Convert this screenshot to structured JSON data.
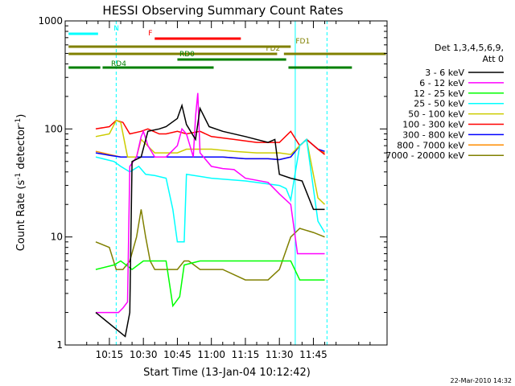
{
  "chart_data": {
    "type": "line",
    "title": "HESSI Observing Summary Count Rates",
    "xlabel": "Start Time (13-Jan-04 10:12:42)",
    "ylabel": "Count Rate (s⁻¹ detector⁻¹)",
    "ylabel_main": "Count Rate (s",
    "ylabel_sup1": "-1",
    "ylabel_mid": " detector",
    "ylabel_sup2": "-1",
    "ylabel_end": ")",
    "yscale": "log",
    "ylim": [
      1,
      1000
    ],
    "xlim_minutes": [
      -19.5,
      122.5
    ],
    "x_ticks": [
      {
        "label": "10:15",
        "min": 0
      },
      {
        "label": "10:30",
        "min": 15
      },
      {
        "label": "10:45",
        "min": 30
      },
      {
        "label": "11:00",
        "min": 45
      },
      {
        "label": "11:15",
        "min": 60
      },
      {
        "label": "11:30",
        "min": 75
      },
      {
        "label": "11:45",
        "min": 90
      }
    ],
    "y_ticks": [
      {
        "label": "1",
        "value": 1
      },
      {
        "label": "10",
        "value": 10
      },
      {
        "label": "100",
        "value": 100
      },
      {
        "label": "1000",
        "value": 1000
      }
    ],
    "legend_header": [
      "Det 1,3,4,5,6,9,",
      "Att 0"
    ],
    "legend_position": "right",
    "date_stamp": "22-Mar-2010 14:32",
    "series": [
      {
        "name": "3 - 6 keV",
        "color": "#000000",
        "points": [
          [
            -6,
            2
          ],
          [
            7,
            1.2
          ],
          [
            9,
            2
          ],
          [
            10,
            50
          ],
          [
            14,
            55
          ],
          [
            17,
            95
          ],
          [
            22,
            100
          ],
          [
            25,
            105
          ],
          [
            30,
            125
          ],
          [
            32,
            165
          ],
          [
            34,
            110
          ],
          [
            38,
            80
          ],
          [
            40,
            155
          ],
          [
            44,
            105
          ],
          [
            50,
            95
          ],
          [
            60,
            85
          ],
          [
            70,
            75
          ],
          [
            73,
            80
          ],
          [
            75,
            38
          ],
          [
            80,
            35
          ],
          [
            85,
            33
          ],
          [
            90,
            18
          ],
          [
            95,
            18
          ]
        ]
      },
      {
        "name": "6 - 12 keV",
        "color": "#ff00ff",
        "points": [
          [
            -6,
            2
          ],
          [
            2,
            2
          ],
          [
            4,
            2
          ],
          [
            6,
            2.2
          ],
          [
            8,
            2.5
          ],
          [
            9,
            45
          ],
          [
            12,
            55
          ],
          [
            14,
            85
          ],
          [
            15,
            95
          ],
          [
            17,
            70
          ],
          [
            20,
            55
          ],
          [
            25,
            55
          ],
          [
            30,
            70
          ],
          [
            32,
            100
          ],
          [
            34,
            90
          ],
          [
            37,
            55
          ],
          [
            38,
            130
          ],
          [
            39,
            215
          ],
          [
            40,
            60
          ],
          [
            45,
            45
          ],
          [
            50,
            43
          ],
          [
            55,
            42
          ],
          [
            60,
            35
          ],
          [
            70,
            32
          ],
          [
            75,
            25
          ],
          [
            80,
            20
          ],
          [
            83,
            7
          ],
          [
            90,
            7
          ],
          [
            95,
            7
          ]
        ]
      },
      {
        "name": "12 - 25 keV",
        "color": "#00ff00",
        "points": [
          [
            -6,
            5
          ],
          [
            2,
            5.5
          ],
          [
            5,
            6
          ],
          [
            10,
            5
          ],
          [
            15,
            6
          ],
          [
            20,
            6
          ],
          [
            25,
            6
          ],
          [
            28,
            2.3
          ],
          [
            31,
            2.8
          ],
          [
            33,
            5.5
          ],
          [
            40,
            6
          ],
          [
            50,
            6
          ],
          [
            60,
            6
          ],
          [
            70,
            6
          ],
          [
            75,
            6
          ],
          [
            80,
            6
          ],
          [
            84,
            4
          ],
          [
            90,
            4
          ],
          [
            95,
            4
          ]
        ]
      },
      {
        "name": "25 - 50 keV",
        "color": "#00ffff",
        "points": [
          [
            -6,
            55
          ],
          [
            2,
            50
          ],
          [
            5,
            45
          ],
          [
            9,
            40
          ],
          [
            13,
            45
          ],
          [
            16,
            38
          ],
          [
            20,
            37
          ],
          [
            25,
            35
          ],
          [
            28,
            18
          ],
          [
            30,
            9
          ],
          [
            33,
            9
          ],
          [
            34,
            38
          ],
          [
            45,
            35
          ],
          [
            60,
            33
          ],
          [
            75,
            30
          ],
          [
            78,
            28
          ],
          [
            80,
            22
          ],
          [
            84,
            70
          ],
          [
            87,
            80
          ],
          [
            92,
            14
          ],
          [
            95,
            11
          ]
        ]
      },
      {
        "name": "50 - 100 keV",
        "color": "#cccc00",
        "points": [
          [
            -6,
            85
          ],
          [
            0,
            90
          ],
          [
            3,
            120
          ],
          [
            5,
            115
          ],
          [
            8,
            55
          ],
          [
            12,
            55
          ],
          [
            14,
            80
          ],
          [
            20,
            60
          ],
          [
            30,
            60
          ],
          [
            34,
            65
          ],
          [
            45,
            65
          ],
          [
            55,
            62
          ],
          [
            65,
            60
          ],
          [
            75,
            60
          ],
          [
            80,
            58
          ],
          [
            84,
            70
          ],
          [
            87,
            80
          ],
          [
            92,
            23
          ],
          [
            95,
            20
          ]
        ]
      },
      {
        "name": "100 - 300 keV",
        "color": "#ff0000",
        "points": [
          [
            -6,
            100
          ],
          [
            0,
            105
          ],
          [
            3,
            120
          ],
          [
            6,
            115
          ],
          [
            9,
            90
          ],
          [
            14,
            95
          ],
          [
            17,
            100
          ],
          [
            22,
            90
          ],
          [
            25,
            90
          ],
          [
            30,
            95
          ],
          [
            34,
            90
          ],
          [
            40,
            95
          ],
          [
            45,
            85
          ],
          [
            55,
            80
          ],
          [
            65,
            75
          ],
          [
            75,
            75
          ],
          [
            80,
            95
          ],
          [
            84,
            70
          ],
          [
            87,
            80
          ],
          [
            92,
            65
          ],
          [
            95,
            58
          ]
        ]
      },
      {
        "name": "300 - 800 keV",
        "color": "#0000ff",
        "points": [
          [
            -6,
            60
          ],
          [
            0,
            57
          ],
          [
            5,
            55
          ],
          [
            10,
            55
          ],
          [
            20,
            55
          ],
          [
            30,
            55
          ],
          [
            40,
            55
          ],
          [
            50,
            55
          ],
          [
            60,
            53
          ],
          [
            70,
            53
          ],
          [
            75,
            52
          ],
          [
            80,
            55
          ],
          [
            84,
            70
          ],
          [
            87,
            80
          ],
          [
            92,
            65
          ],
          [
            95,
            62
          ]
        ]
      },
      {
        "name": "800 - 7000 keV",
        "color": "#ff8c00",
        "points": [
          [
            -6,
            62
          ],
          [
            0,
            58
          ],
          [
            5,
            55
          ],
          [
            10,
            55
          ],
          [
            20,
            55
          ],
          [
            30,
            55
          ],
          [
            40,
            55
          ],
          [
            50,
            55
          ],
          [
            60,
            53
          ],
          [
            70,
            53
          ],
          [
            75,
            52
          ],
          [
            80,
            55
          ],
          [
            84,
            70
          ],
          [
            87,
            80
          ],
          [
            92,
            65
          ],
          [
            95,
            60
          ]
        ]
      },
      {
        "name": "7000 - 20000 keV",
        "color": "#808000",
        "points": [
          [
            -6,
            9
          ],
          [
            0,
            8
          ],
          [
            3,
            5
          ],
          [
            6,
            5
          ],
          [
            9,
            6
          ],
          [
            12,
            10
          ],
          [
            14,
            18
          ],
          [
            16,
            10
          ],
          [
            18,
            6
          ],
          [
            20,
            5
          ],
          [
            25,
            5
          ],
          [
            30,
            5
          ],
          [
            33,
            6
          ],
          [
            35,
            6
          ],
          [
            40,
            5
          ],
          [
            50,
            5
          ],
          [
            60,
            4
          ],
          [
            70,
            4
          ],
          [
            75,
            5
          ],
          [
            80,
            10
          ],
          [
            84,
            12
          ],
          [
            90,
            11
          ],
          [
            95,
            10
          ]
        ]
      }
    ],
    "flag_bars": [
      {
        "label": "N",
        "color": "#00ffff",
        "segments": [
          [
            -18,
            -5
          ]
        ]
      },
      {
        "label": "F",
        "color": "#ff0000",
        "segments": [
          [
            20,
            58
          ]
        ]
      },
      {
        "label": "FD1",
        "color": "#808000",
        "segments": [
          [
            -18,
            80
          ]
        ]
      },
      {
        "label": "FD2",
        "color": "#808000",
        "segments": [
          [
            -18,
            74
          ],
          [
            77,
            122
          ]
        ]
      },
      {
        "label": "RD0",
        "color": "#008000",
        "segments": [
          [
            30,
            78
          ]
        ]
      },
      {
        "label": "RD4",
        "color": "#008000",
        "segments": [
          [
            -18,
            -4
          ],
          [
            -3,
            46
          ],
          [
            79,
            107
          ]
        ]
      }
    ],
    "vertical_markers": [
      {
        "style": "dashed",
        "color": "#00ffff",
        "min": 3
      },
      {
        "style": "solid",
        "color": "#00ffff",
        "min": 82
      },
      {
        "style": "dashed",
        "color": "#00ffff",
        "min": 96
      }
    ]
  }
}
